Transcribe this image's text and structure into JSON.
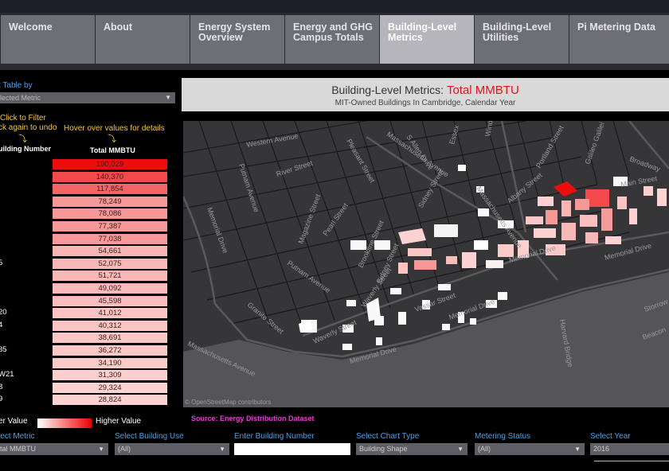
{
  "tabs": [
    {
      "label": "Welcome"
    },
    {
      "label": "About"
    },
    {
      "label": "Energy System\nOverview"
    },
    {
      "label": "Energy and GHG\nCampus Totals"
    },
    {
      "label": "Building-Level\nMetrics",
      "active": true
    },
    {
      "label": "Building-Level\nUtilities"
    },
    {
      "label": "Pi Metering Data"
    }
  ],
  "table": {
    "sort_label": "t Table by",
    "sort_value": "lected Metric",
    "hint_filter_1": "Click to Filter",
    "hint_filter_2": "ck again to undo",
    "hint_hover": "Hover over values for details",
    "col_building": "uilding Number",
    "col_metric": "Total MMBTU",
    "rows": [
      {
        "label": "",
        "value": "190,029",
        "color": "#ee0d0d"
      },
      {
        "label": "",
        "value": "140,370",
        "color": "#f24a4a"
      },
      {
        "label": "",
        "value": "117,854",
        "color": "#f46666"
      },
      {
        "label": "",
        "value": "78,249",
        "color": "#f79797"
      },
      {
        "label": "",
        "value": "78,086",
        "color": "#f79797"
      },
      {
        "label": "",
        "value": "77,387",
        "color": "#f79898"
      },
      {
        "label": "",
        "value": "77,038",
        "color": "#f79999"
      },
      {
        "label": "",
        "value": "54,661",
        "color": "#f9b4b4"
      },
      {
        "label": "5",
        "value": "52,075",
        "color": "#f9b7b7"
      },
      {
        "label": "",
        "value": "51,721",
        "color": "#f9b8b8"
      },
      {
        "label": "",
        "value": "49,092",
        "color": "#fabbbb"
      },
      {
        "label": "",
        "value": "45,598",
        "color": "#fabebe"
      },
      {
        "label": "20",
        "value": "41,012",
        "color": "#fbc3c3"
      },
      {
        "label": "4",
        "value": "40,312",
        "color": "#fbc4c4"
      },
      {
        "label": "",
        "value": "38,691",
        "color": "#fbc6c6"
      },
      {
        "label": "35",
        "value": "36,272",
        "color": "#fbc8c8"
      },
      {
        "label": "",
        "value": "34,190",
        "color": "#fbcbcb"
      },
      {
        "label": "W21",
        "value": "31,309",
        "color": "#fccece"
      },
      {
        "label": "8",
        "value": "29,324",
        "color": "#fcd1d1"
      },
      {
        "label": "9",
        "value": "28,824",
        "color": "#fcd2d2"
      }
    ],
    "legend_low": "er Value",
    "legend_high": "Higher Value"
  },
  "map": {
    "title_prefix": "Building-Level Metrics: ",
    "title_metric": "Total MMBTU",
    "subtitle": "MIT-Owned Buildings In Cambridge, Calendar Year",
    "attribution": "© OpenStreetMap contributors",
    "streets": {
      "western_ave": "Western Avenue",
      "river_st": "River Street",
      "putnam_ave": "Putnam Avenue",
      "memorial_drive_left": "Memorial Drive",
      "massachusetts_ave": "Massachusetts Avenue",
      "main_st": "Main Street",
      "vassar_st": "Vassar Street",
      "memorial_drive": "Memorial Drive",
      "harvard_bridge": "Harvard Bridge",
      "broadway": "Broadway",
      "portland_st": "Portland Street",
      "galileo": "Galileo Galilei",
      "albany_st": "Albany Street",
      "sidney_st": "Sidney Street",
      "brookline_st": "Brookline Street",
      "waverly_st": "Waverly Street",
      "granite_st": "Granite Street",
      "pearl_st": "Pearl Street",
      "magazine_st": "Magazine Street",
      "allen_dr": "S Allen Drive",
      "storrow": "Storrow",
      "beacon": "Beacon",
      "pleasant_st": "Pleasant Street",
      "windsor": "Windsor",
      "essex": "Essex",
      "mass_ave_low": "Massachusetts Avenue"
    }
  },
  "source": "Source: Energy Distribution Dataset",
  "filters": {
    "metric_label": "lect Metric",
    "metric_value": "tal MMBTU",
    "use_label": "Select Building Use",
    "use_value": "(All)",
    "number_label": "Enter Building Number",
    "number_value": "",
    "chart_label": "Select Chart Type",
    "chart_value": "Building Shape",
    "status_label": "Metering Status",
    "status_value": "(All)",
    "year_label": "Select Year",
    "year_value": "2016"
  },
  "colors": {
    "accent_blue": "#4a9fe3",
    "hint_yellow": "#f5c542",
    "metric_red": "#e8101a",
    "source_magenta": "#e53dd7"
  }
}
